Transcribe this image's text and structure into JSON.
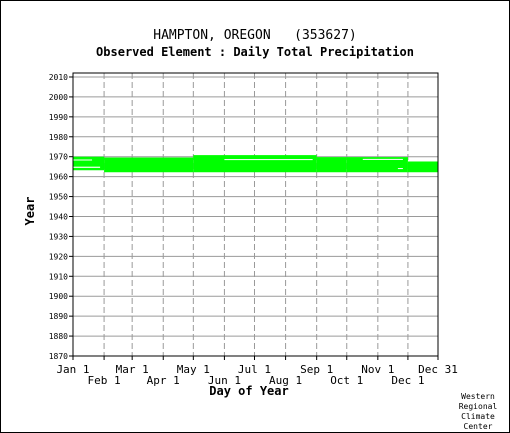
{
  "chart_data": {
    "type": "bar",
    "title": "HAMPTON, OREGON   (353627)",
    "subtitle": "Observed Element : Daily Total Precipitation",
    "xlabel": "Day of Year",
    "ylabel": "Year",
    "credit": [
      "Western",
      "Regional",
      "Climate",
      "Center"
    ],
    "x_domain": [
      1,
      365
    ],
    "ylim": [
      1870,
      2012
    ],
    "y_ticks": [
      1870,
      1880,
      1890,
      1900,
      1910,
      1920,
      1930,
      1940,
      1950,
      1960,
      1970,
      1980,
      1990,
      2000,
      2010
    ],
    "x_ticks": [
      {
        "label": "Jan 1",
        "day": 1,
        "row": 0
      },
      {
        "label": "Feb 1",
        "day": 32,
        "row": 1
      },
      {
        "label": "Mar 1",
        "day": 60,
        "row": 0
      },
      {
        "label": "Apr 1",
        "day": 91,
        "row": 1
      },
      {
        "label": "May 1",
        "day": 121,
        "row": 0
      },
      {
        "label": "Jun 1",
        "day": 152,
        "row": 1
      },
      {
        "label": "Jul 1",
        "day": 182,
        "row": 0
      },
      {
        "label": "Aug 1",
        "day": 213,
        "row": 1
      },
      {
        "label": "Sep 1",
        "day": 244,
        "row": 0
      },
      {
        "label": "Oct 1",
        "day": 274,
        "row": 1
      },
      {
        "label": "Nov 1",
        "day": 305,
        "row": 0
      },
      {
        "label": "Dec 1",
        "day": 335,
        "row": 1
      },
      {
        "label": "Dec 31",
        "day": 365,
        "row": 0
      }
    ],
    "grid": true,
    "bar_color": "#00ff00",
    "coverage": [
      {
        "start_day": 1,
        "end_day": 32,
        "start_year": 1963.2,
        "end_year": 1970.0
      },
      {
        "start_day": 32,
        "end_day": 121,
        "start_year": 1962.2,
        "end_year": 1969.6
      },
      {
        "start_day": 121,
        "end_day": 244,
        "start_year": 1962.2,
        "end_year": 1970.8
      },
      {
        "start_day": 244,
        "end_day": 274,
        "start_year": 1962.2,
        "end_year": 1969.8
      },
      {
        "start_day": 274,
        "end_day": 335,
        "start_year": 1962.2,
        "end_year": 1969.8
      },
      {
        "start_day": 335,
        "end_day": 365,
        "start_year": 1962.2,
        "end_year": 1967.6
      }
    ],
    "gaps": [
      {
        "start_day": 1,
        "end_day": 28,
        "start_year": 1964.4,
        "end_year": 1965.0
      },
      {
        "start_day": 1,
        "end_day": 20,
        "start_year": 1968.2,
        "end_year": 1968.6
      },
      {
        "start_day": 152,
        "end_day": 240,
        "start_year": 1968.4,
        "end_year": 1968.8
      },
      {
        "start_day": 290,
        "end_day": 330,
        "start_year": 1968.5,
        "end_year": 1968.9
      },
      {
        "start_day": 325,
        "end_day": 330,
        "start_year": 1963.8,
        "end_year": 1964.3
      }
    ]
  }
}
